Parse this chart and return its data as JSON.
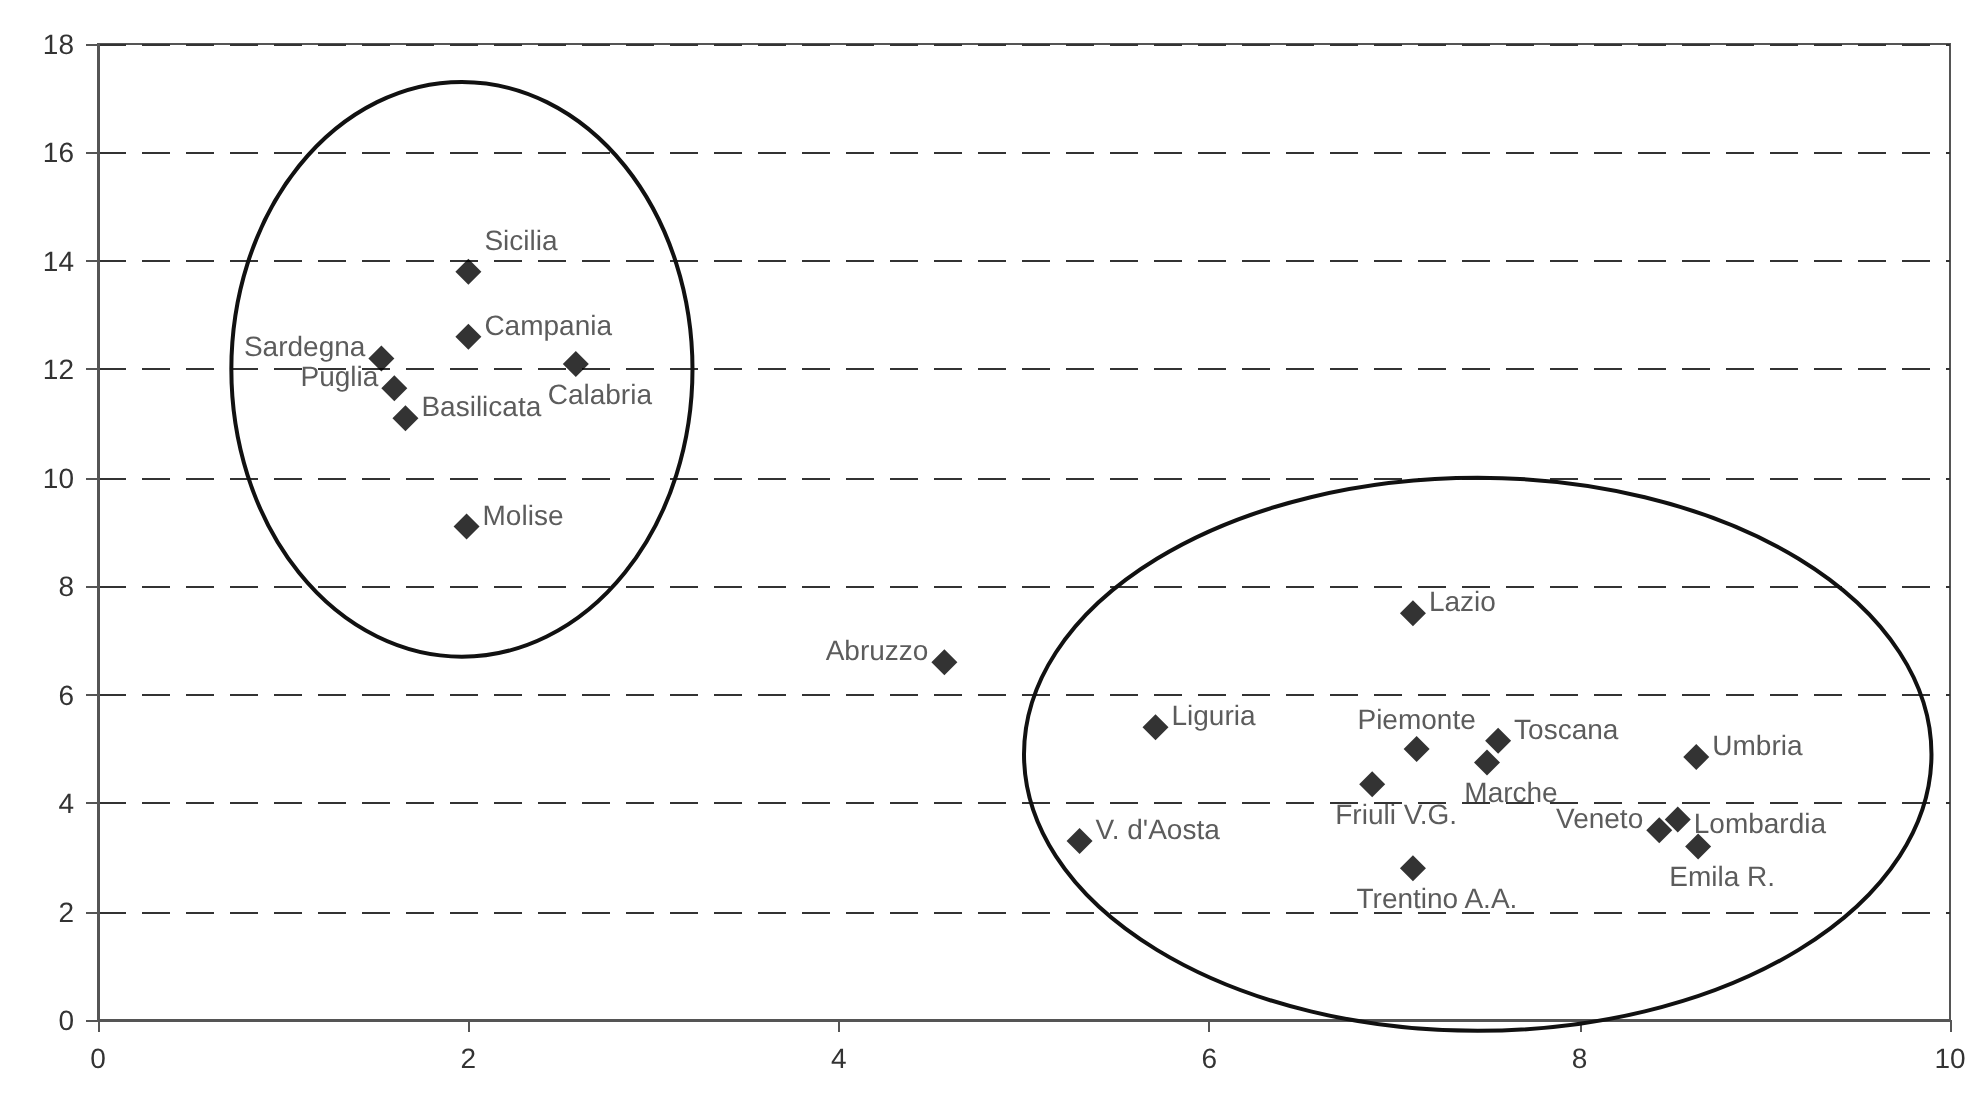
{
  "chart_data": {
    "type": "scatter",
    "marker": "diamond",
    "grid": "y",
    "xlim": [
      0,
      10
    ],
    "xticks": [
      0,
      2,
      4,
      6,
      8,
      10
    ],
    "ylim": [
      0,
      18
    ],
    "yticks": [
      0,
      2,
      4,
      6,
      8,
      10,
      12,
      14,
      16,
      18
    ],
    "x": [
      2.0,
      2.0,
      2.58,
      1.53,
      1.6,
      1.66,
      1.99,
      4.57,
      5.71,
      5.3,
      7.1,
      7.12,
      7.56,
      7.5,
      6.88,
      7.1,
      8.63,
      8.53,
      8.43,
      8.64
    ],
    "series": [
      {
        "color": "#000000",
        "values": [
          13.8,
          12.6,
          12.1,
          12.2,
          11.65,
          11.1,
          9.1,
          6.6,
          5.4,
          3.3,
          7.5,
          5.0,
          5.15,
          4.75,
          4.35,
          2.8,
          4.85,
          3.7,
          3.5,
          3.2
        ]
      }
    ],
    "annotations": [
      {
        "text": "Sicilia",
        "x": 2.0,
        "y": 13.8
      },
      {
        "text": "Campania",
        "x": 2.0,
        "y": 12.6
      },
      {
        "text": "Calabria",
        "x": 2.58,
        "y": 12.1
      },
      {
        "text": "Sardegna",
        "x": 1.53,
        "y": 12.2
      },
      {
        "text": "Puglia",
        "x": 1.6,
        "y": 11.65
      },
      {
        "text": "Basilicata",
        "x": 1.66,
        "y": 11.1
      },
      {
        "text": "Molise",
        "x": 1.99,
        "y": 9.1
      },
      {
        "text": "Abruzzo",
        "x": 4.57,
        "y": 6.6
      },
      {
        "text": "Liguria",
        "x": 5.71,
        "y": 5.4
      },
      {
        "text": "V. d'Aosta",
        "x": 5.3,
        "y": 3.3
      },
      {
        "text": "Lazio",
        "x": 7.1,
        "y": 7.5
      },
      {
        "text": "Piemonte",
        "x": 7.12,
        "y": 5.0
      },
      {
        "text": "Toscana",
        "x": 7.56,
        "y": 5.15
      },
      {
        "text": "Marche",
        "x": 7.5,
        "y": 4.75
      },
      {
        "text": "Friuli V.G.",
        "x": 6.88,
        "y": 4.35
      },
      {
        "text": "Trentino A.A.",
        "x": 7.1,
        "y": 2.8
      },
      {
        "text": "Umbria",
        "x": 8.63,
        "y": 4.85
      },
      {
        "text": "Lombardia",
        "x": 8.53,
        "y": 3.7
      },
      {
        "text": "Veneto",
        "x": 8.43,
        "y": 3.5
      },
      {
        "text": "Emila R.",
        "x": 8.64,
        "y": 3.2
      }
    ]
  }
}
